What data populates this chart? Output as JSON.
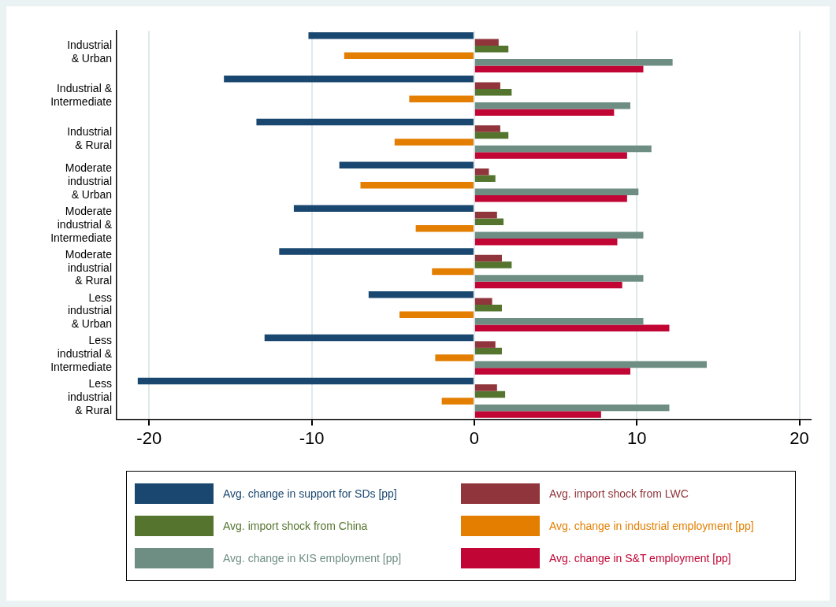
{
  "chart_data": {
    "type": "bar",
    "orientation": "horizontal",
    "categories": [
      "Industrial\n& Urban",
      "Industrial &\nIntermediate",
      "Industrial\n& Rural",
      "Moderate\nindustrial\n& Urban",
      "Moderate\nindustrial &\nIntermediate",
      "Moderate\nindustrial\n& Rural",
      "Less\nindustrial\n& Urban",
      "Less\nindustrial &\nIntermediate",
      "Less\nindustrial\n& Rural"
    ],
    "series": [
      {
        "name": "Avg. change in support for SDs [pp]",
        "color": "#1a476f",
        "values": [
          -10.2,
          -15.4,
          -13.4,
          -8.3,
          -11.1,
          -12.0,
          -6.5,
          -12.9,
          -20.7
        ]
      },
      {
        "name": "Avg. import shock from LWC",
        "color": "#90353b",
        "values": [
          1.5,
          1.6,
          1.6,
          0.9,
          1.4,
          1.7,
          1.1,
          1.3,
          1.4
        ]
      },
      {
        "name": "Avg. import shock from China",
        "color": "#55752f",
        "values": [
          2.1,
          2.3,
          2.1,
          1.3,
          1.8,
          2.3,
          1.7,
          1.7,
          1.9
        ]
      },
      {
        "name": "Avg. change in industrial employment [pp]",
        "color": "#e37e00",
        "values": [
          -8.0,
          -4.0,
          -4.9,
          -7.0,
          -3.6,
          -2.6,
          -4.6,
          -2.4,
          -2.0
        ]
      },
      {
        "name": "Avg. change in KIS employment [pp]",
        "color": "#6e8e84",
        "values": [
          12.2,
          9.6,
          10.9,
          10.1,
          10.4,
          10.4,
          10.4,
          14.3,
          12.0
        ]
      },
      {
        "name": "Avg. change in S&T employment [pp]",
        "color": "#c10534",
        "values": [
          10.4,
          8.6,
          9.4,
          9.4,
          8.8,
          9.1,
          12.0,
          9.6,
          7.8
        ]
      }
    ],
    "xlim": [
      -22,
      20.7
    ],
    "xticks": [
      -20,
      -10,
      0,
      10,
      20
    ],
    "grid": "x",
    "legend": "bottom"
  }
}
